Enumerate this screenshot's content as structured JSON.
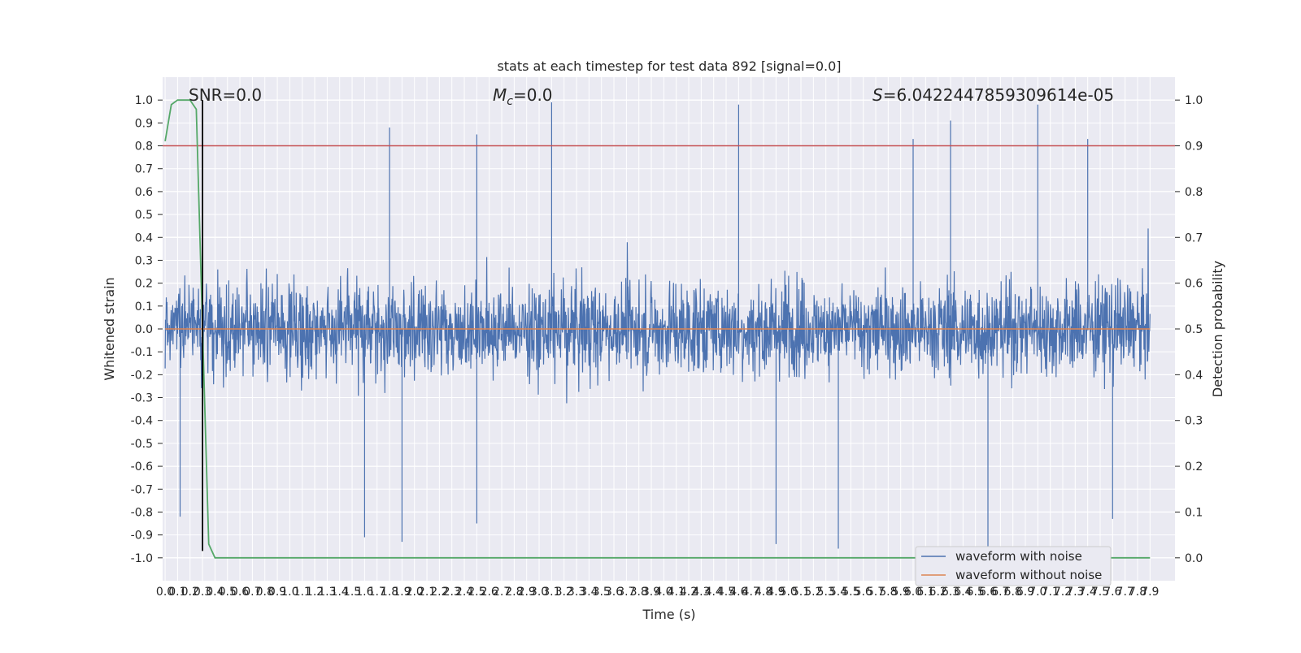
{
  "chart_data": {
    "type": "line",
    "title": "stats at each timestep for test data 892 [signal=0.0]",
    "xlabel": "Time (s)",
    "ylabel": "Whitened strain",
    "y2label": "Detection probability",
    "xlim": [
      0.0,
      7.9
    ],
    "ylim": [
      -1.1,
      1.1
    ],
    "y2lim": [
      -0.05,
      1.05
    ],
    "x_ticks": [
      "0.0",
      "0.1",
      "0.2",
      "0.3",
      "0.4",
      "0.5",
      "0.6",
      "0.7",
      "0.8",
      "0.9",
      "1.0",
      "1.1",
      "1.2",
      "1.3",
      "1.4",
      "1.5",
      "1.6",
      "1.7",
      "1.8",
      "1.9",
      "2.0",
      "2.1",
      "2.2",
      "2.3",
      "2.4",
      "2.5",
      "2.6",
      "2.7",
      "2.8",
      "2.9",
      "3.0",
      "3.1",
      "3.2",
      "3.3",
      "3.4",
      "3.5",
      "3.6",
      "3.7",
      "3.8",
      "3.9",
      "4.0",
      "4.1",
      "4.2",
      "4.3",
      "4.4",
      "4.5",
      "4.6",
      "4.7",
      "4.8",
      "4.9",
      "5.0",
      "5.1",
      "5.2",
      "5.3",
      "5.4",
      "5.5",
      "5.6",
      "5.7",
      "5.8",
      "5.9",
      "6.0",
      "6.1",
      "6.2",
      "6.3",
      "6.4",
      "6.5",
      "6.6",
      "6.7",
      "6.8",
      "6.9",
      "7.0",
      "7.1",
      "7.2",
      "7.3",
      "7.4",
      "7.5",
      "7.6",
      "7.7",
      "7.8",
      "7.9"
    ],
    "y_ticks": [
      "1.0",
      "0.9",
      "0.8",
      "0.7",
      "0.6",
      "0.5",
      "0.4",
      "0.3",
      "0.2",
      "0.1",
      "0.0",
      "-0.1",
      "-0.2",
      "-0.3",
      "-0.4",
      "-0.5",
      "-0.6",
      "-0.7",
      "-0.8",
      "-0.9",
      "-1.0"
    ],
    "y2_ticks": [
      "1.0",
      "0.9",
      "0.8",
      "0.7",
      "0.6",
      "0.5",
      "0.4",
      "0.3",
      "0.2",
      "0.1",
      "0.0"
    ],
    "annotations": {
      "snr": "SNR=0.0",
      "mc_symbol": "M",
      "mc_sub": "c",
      "mc_value": "=0.0",
      "s_symbol": "S",
      "s_value": "=6.0422447859309614e-05"
    },
    "series": [
      {
        "name": "waveform with noise",
        "color": "#4c72b0",
        "description_level": "noise band roughly between -0.95 and 0.99",
        "peaks": [
          {
            "x": 0.3,
            "y": 0.99
          },
          {
            "x": 3.1,
            "y": 0.99
          },
          {
            "x": 4.6,
            "y": 0.98
          },
          {
            "x": 7.0,
            "y": 0.98
          },
          {
            "x": 1.8,
            "y": 0.88
          },
          {
            "x": 2.5,
            "y": 0.85
          },
          {
            "x": 6.3,
            "y": 0.91
          },
          {
            "x": 7.4,
            "y": 0.83
          },
          {
            "x": 6.0,
            "y": 0.83
          }
        ],
        "troughs": [
          {
            "x": 0.12,
            "y": -0.82
          },
          {
            "x": 1.6,
            "y": -0.91
          },
          {
            "x": 1.9,
            "y": -0.93
          },
          {
            "x": 4.9,
            "y": -0.94
          },
          {
            "x": 5.4,
            "y": -0.96
          },
          {
            "x": 6.6,
            "y": -0.97
          },
          {
            "x": 7.6,
            "y": -0.83
          },
          {
            "x": 2.5,
            "y": -0.85
          }
        ]
      },
      {
        "name": "waveform without noise",
        "color": "#dd8452",
        "values_note": "flat at 0.0",
        "x": [
          0.0,
          7.9
        ],
        "y": [
          0.0,
          0.0
        ]
      },
      {
        "name": "",
        "color": "#55a868",
        "axis": "right",
        "x": [
          0.0,
          0.05,
          0.1,
          0.15,
          0.2,
          0.25,
          0.3,
          0.35,
          0.4,
          7.9
        ],
        "y": [
          0.91,
          0.99,
          1.0,
          1.0,
          1.0,
          0.98,
          0.5,
          0.03,
          0.0,
          0.0
        ]
      }
    ],
    "threshold_line": {
      "axis": "right",
      "y": 0.9,
      "color": "#c44e52"
    },
    "marker_line": {
      "x": 0.3,
      "color": "#000000"
    },
    "legend": {
      "placement": "lower right"
    },
    "grid": true
  }
}
